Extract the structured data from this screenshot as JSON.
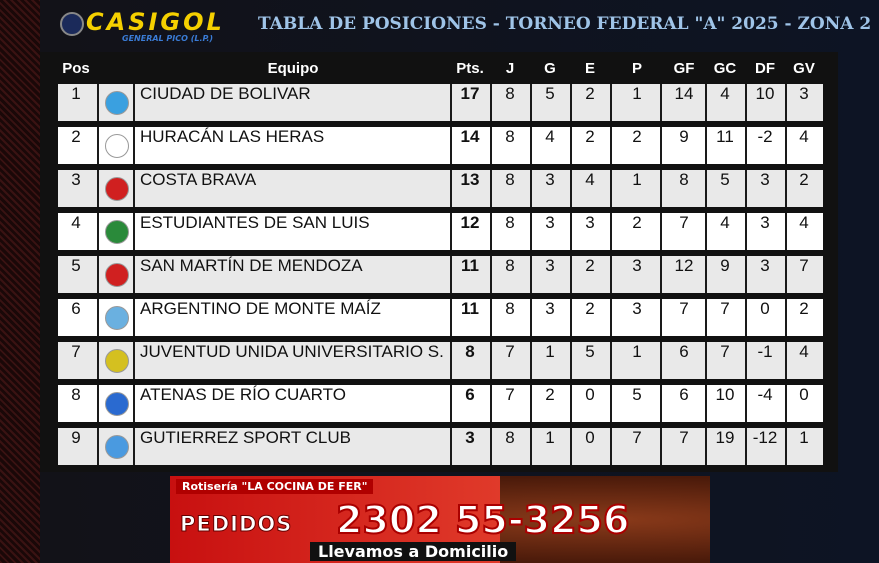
{
  "header": {
    "logo": "CASIGOL",
    "logo_subtitle": "GENERAL PICO (L.P.)",
    "title": "TABLA DE POSICIONES - TORNEO FEDERAL \"A\" 2025 - ZONA 2"
  },
  "table": {
    "columns": [
      "Pos",
      "Equipo",
      "Pts.",
      "J",
      "G",
      "E",
      "P",
      "GF",
      "GC",
      "DF",
      "GV"
    ],
    "rows": [
      [
        1,
        "CIUDAD DE BOLIVAR",
        17,
        8,
        5,
        2,
        1,
        14,
        4,
        10,
        3
      ],
      [
        2,
        "HURACÁN LAS HERAS",
        14,
        8,
        4,
        2,
        2,
        9,
        11,
        -2,
        4
      ],
      [
        3,
        "COSTA BRAVA",
        13,
        8,
        3,
        4,
        1,
        8,
        5,
        3,
        2
      ],
      [
        4,
        "ESTUDIANTES DE SAN LUIS",
        12,
        8,
        3,
        3,
        2,
        7,
        4,
        3,
        4
      ],
      [
        5,
        "SAN MARTÍN DE MENDOZA",
        11,
        8,
        3,
        2,
        3,
        12,
        9,
        3,
        7
      ],
      [
        6,
        "ARGENTINO DE MONTE MAÍZ",
        11,
        8,
        3,
        2,
        3,
        7,
        7,
        0,
        2
      ],
      [
        7,
        "JUVENTUD UNIDA UNIVERSITARIO S.",
        8,
        7,
        1,
        5,
        1,
        6,
        7,
        -1,
        4
      ],
      [
        8,
        "ATENAS DE RÍO CUARTO",
        6,
        7,
        2,
        0,
        5,
        6,
        10,
        -4,
        0
      ],
      [
        9,
        "GUTIERREZ SPORT CLUB",
        3,
        8,
        1,
        0,
        7,
        7,
        19,
        -12,
        1
      ]
    ]
  },
  "ad": {
    "name": "Rotisería \"LA COCINA DE FER\"",
    "label": "PEDIDOS",
    "phone": "2302 55-3256",
    "tagline": "Llevamos a Domicilio"
  }
}
